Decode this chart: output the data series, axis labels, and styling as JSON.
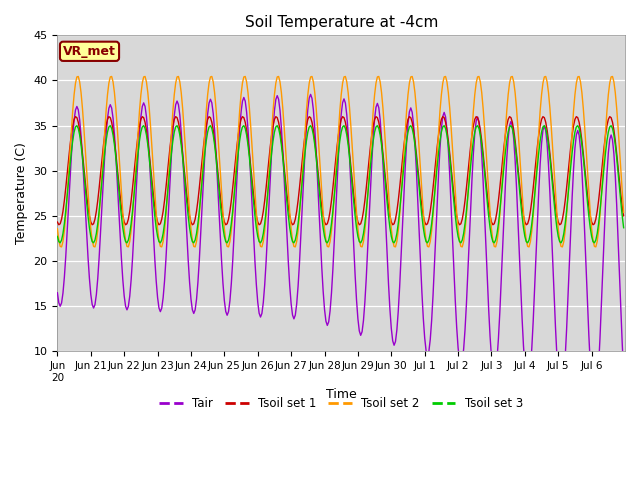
{
  "title": "Soil Temperature at -4cm",
  "xlabel": "Time",
  "ylabel": "Temperature (C)",
  "ylim": [
    10,
    45
  ],
  "bg_color": "#d8d8d8",
  "colors": {
    "Tair": "#9900cc",
    "Tsoil set 1": "#cc0000",
    "Tsoil set 2": "#ff9900",
    "Tsoil set 3": "#00cc00"
  },
  "annotation": "VR_met",
  "annotation_color": "#880000",
  "annotation_bg": "#ffff99",
  "legend_labels": [
    "Tair",
    "Tsoil set 1",
    "Tsoil set 2",
    "Tsoil set 3"
  ],
  "figsize": [
    6.4,
    4.8
  ],
  "dpi": 100
}
